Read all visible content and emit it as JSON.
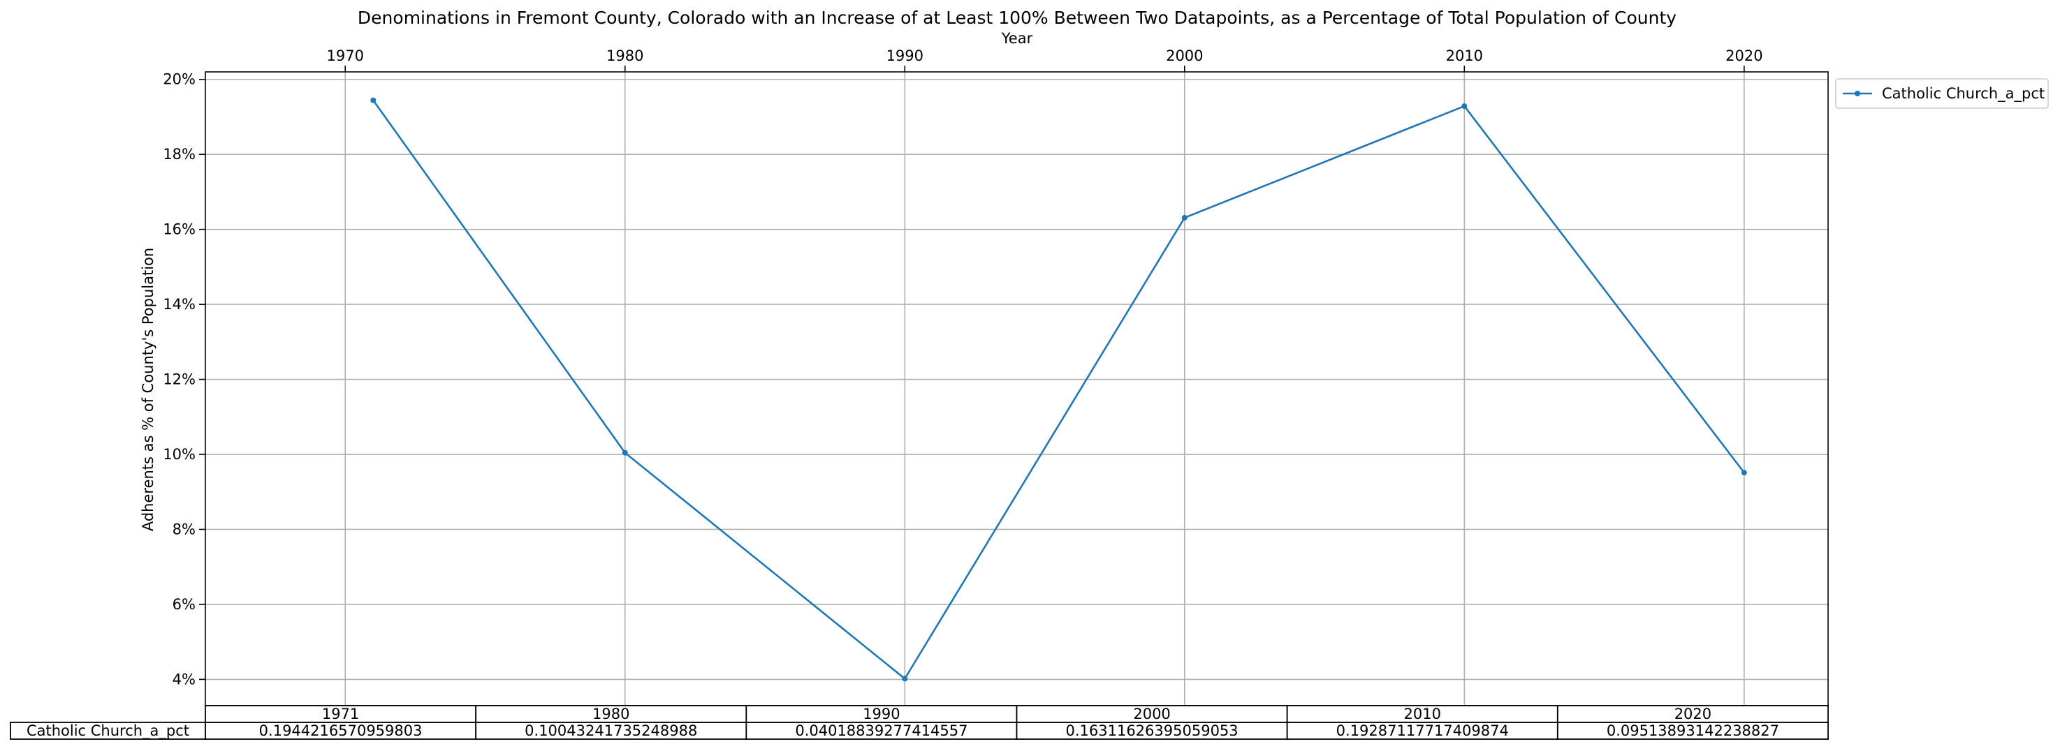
{
  "chart_data": {
    "type": "line",
    "title": "Denominations in Fremont County, Colorado with an Increase of at Least 100% Between Two Datapoints, as a Percentage of Total Population of County",
    "xlabel": "Year",
    "ylabel": "Adherents as % of County's Population",
    "xlim": [
      1965,
      2023
    ],
    "ylim": [
      0.033,
      0.202
    ],
    "x_ticks": [
      1970,
      1980,
      1990,
      2000,
      2010,
      2020
    ],
    "x_tick_labels": [
      "1970",
      "1980",
      "1990",
      "2000",
      "2010",
      "2020"
    ],
    "x_axis_position": "top",
    "y_ticks": [
      0.04,
      0.06,
      0.08,
      0.1,
      0.12,
      0.14,
      0.16,
      0.18,
      0.2
    ],
    "y_tick_labels": [
      "4%",
      "6%",
      "8%",
      "10%",
      "12%",
      "14%",
      "16%",
      "18%",
      "20%"
    ],
    "grid": true,
    "legend_position": "outside-top-right",
    "series": [
      {
        "name": "Catholic Church_a_pct",
        "color": "#1f77b4",
        "marker": "circle",
        "x": [
          1971,
          1980,
          1990,
          2000,
          2010,
          2020
        ],
        "y": [
          0.1944216570959803,
          0.10043241735248988,
          0.04018839277414557,
          0.16311626395059053,
          0.19287117717409874,
          0.09513893142238827
        ]
      }
    ],
    "table": {
      "col_labels": [
        "1971",
        "1980",
        "1990",
        "2000",
        "2010",
        "2020"
      ],
      "rows": [
        {
          "label": "Catholic Church_a_pct",
          "cells": [
            "0.1944216570959803",
            "0.10043241735248988",
            "0.04018839277414557",
            "0.16311626395059053",
            "0.19287117717409874",
            "0.09513893142238827"
          ]
        }
      ]
    }
  }
}
